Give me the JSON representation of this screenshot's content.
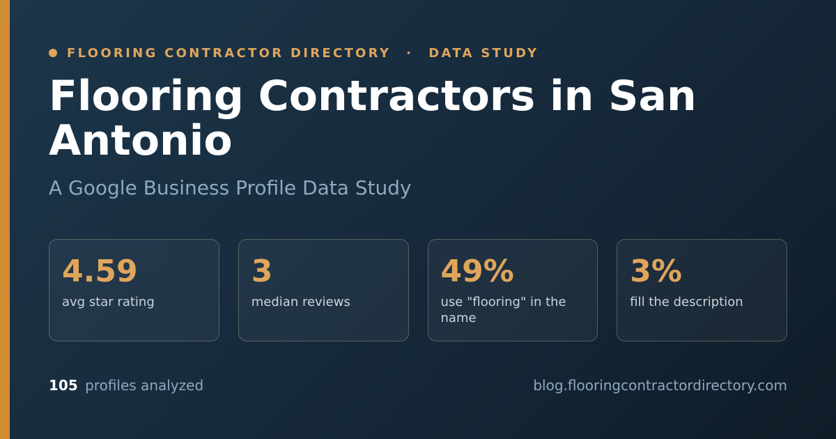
{
  "colors": {
    "accent": "#e0a55c",
    "accent_bar": "#d18d34",
    "background_start": "#1c364b",
    "background_end": "#0f1c28",
    "title": "#ffffff",
    "muted": "#8fa9bd"
  },
  "header": {
    "eyebrow_icon": "dot-icon",
    "eyebrow_left": "FLOORING CONTRACTOR DIRECTORY",
    "eyebrow_separator": "·",
    "eyebrow_right": "DATA STUDY",
    "title": "Flooring Contractors in San Antonio",
    "subtitle": "A Google Business Profile Data Study"
  },
  "stats": [
    {
      "value": "4.59",
      "label": "avg star rating"
    },
    {
      "value": "3",
      "label": "median reviews"
    },
    {
      "value": "49%",
      "label": "use \"flooring\" in the name"
    },
    {
      "value": "3%",
      "label": "fill the description"
    }
  ],
  "footer": {
    "count": "105",
    "count_label": "profiles analyzed",
    "url": "blog.flooringcontractordirectory.com"
  }
}
